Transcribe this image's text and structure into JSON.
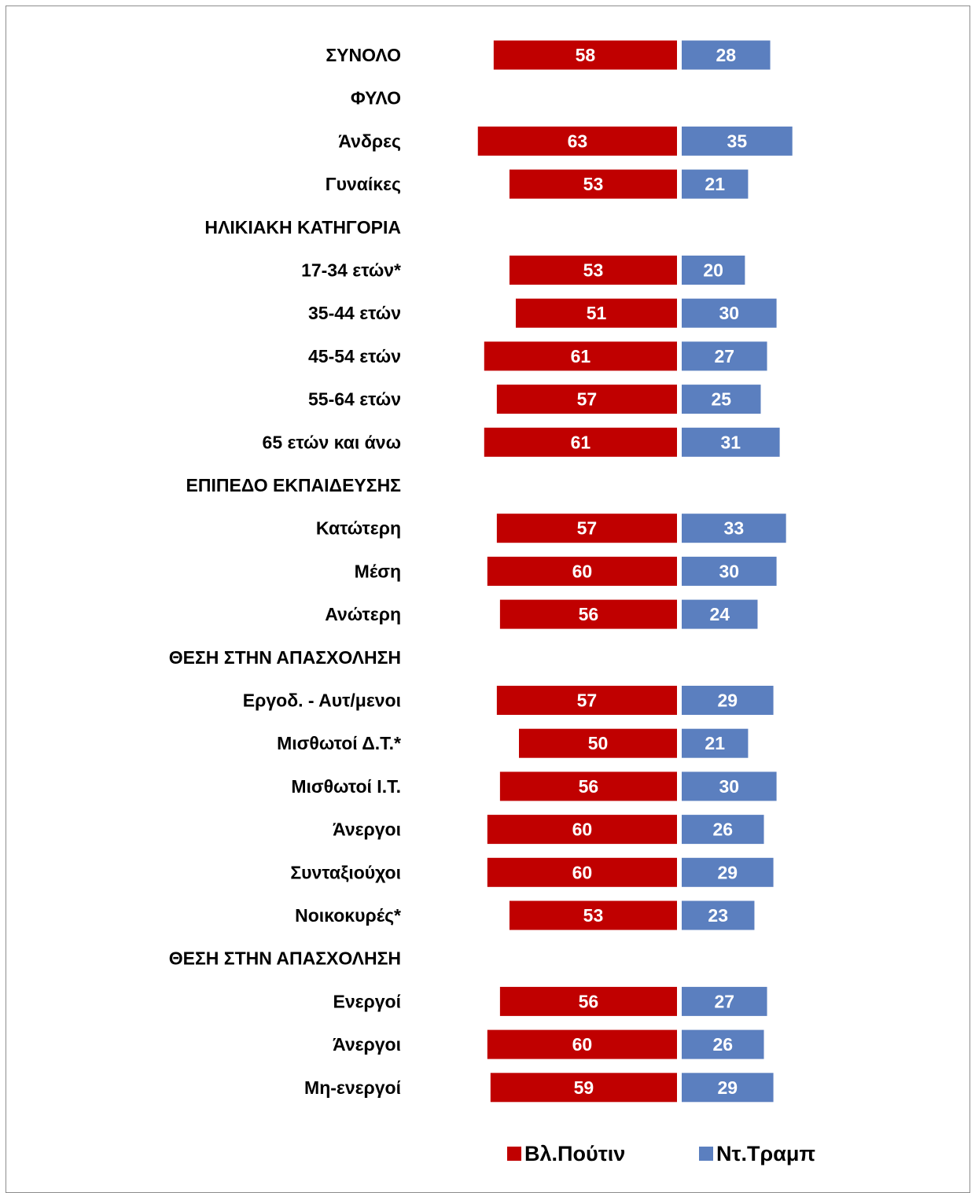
{
  "chart_data": {
    "type": "bar",
    "orientation": "horizontal-diverging",
    "categories": [
      "ΣΥΝΟΛΟ",
      "ΦΥΛΟ",
      "Άνδρες",
      "Γυναίκες",
      "ΗΛΙΚΙΑΚΗ ΚΑΤΗΓΟΡΙΑ",
      "17-34 ετών*",
      "35-44 ετών",
      "45-54 ετών",
      "55-64 ετών",
      "65 ετών και άνω",
      "ΕΠΙΠΕΔΟ ΕΚΠΑΙΔΕΥΣΗΣ",
      "Κατώτερη",
      "Μέση",
      "Ανώτερη",
      "ΘΕΣΗ ΣΤΗΝ ΑΠΑΣΧΟΛΗΣΗ",
      "Εργοδ. - Αυτ/μενοι",
      "Μισθωτοί Δ.Τ.*",
      "Μισθωτοί Ι.Τ.",
      "Άνεργοι",
      "Συνταξιούχοι",
      "Νοικοκυρές*",
      "ΘΕΣΗ ΣΤΗΝ ΑΠΑΣΧΟΛΗΣΗ",
      "Ενεργοί",
      "Άνεργοι",
      "Μη-ενεργοί"
    ],
    "series": [
      {
        "name": "Βλ.Πούτιν",
        "color": "#c00000",
        "values": [
          58,
          null,
          63,
          53,
          null,
          53,
          51,
          61,
          57,
          61,
          null,
          57,
          60,
          56,
          null,
          57,
          50,
          56,
          60,
          60,
          53,
          null,
          56,
          60,
          59
        ]
      },
      {
        "name": "Ντ.Τραμπ",
        "color": "#5b7fbf",
        "values": [
          28,
          null,
          35,
          21,
          null,
          20,
          30,
          27,
          25,
          31,
          null,
          33,
          30,
          24,
          null,
          29,
          21,
          30,
          26,
          29,
          23,
          null,
          27,
          26,
          29
        ]
      }
    ],
    "legend_position": "bottom",
    "grid": false
  },
  "legend": {
    "items": [
      {
        "label": "Βλ.Πούτιν",
        "color": "#c00000"
      },
      {
        "label": "Ντ.Τραμπ",
        "color": "#5b7fbf"
      }
    ]
  }
}
